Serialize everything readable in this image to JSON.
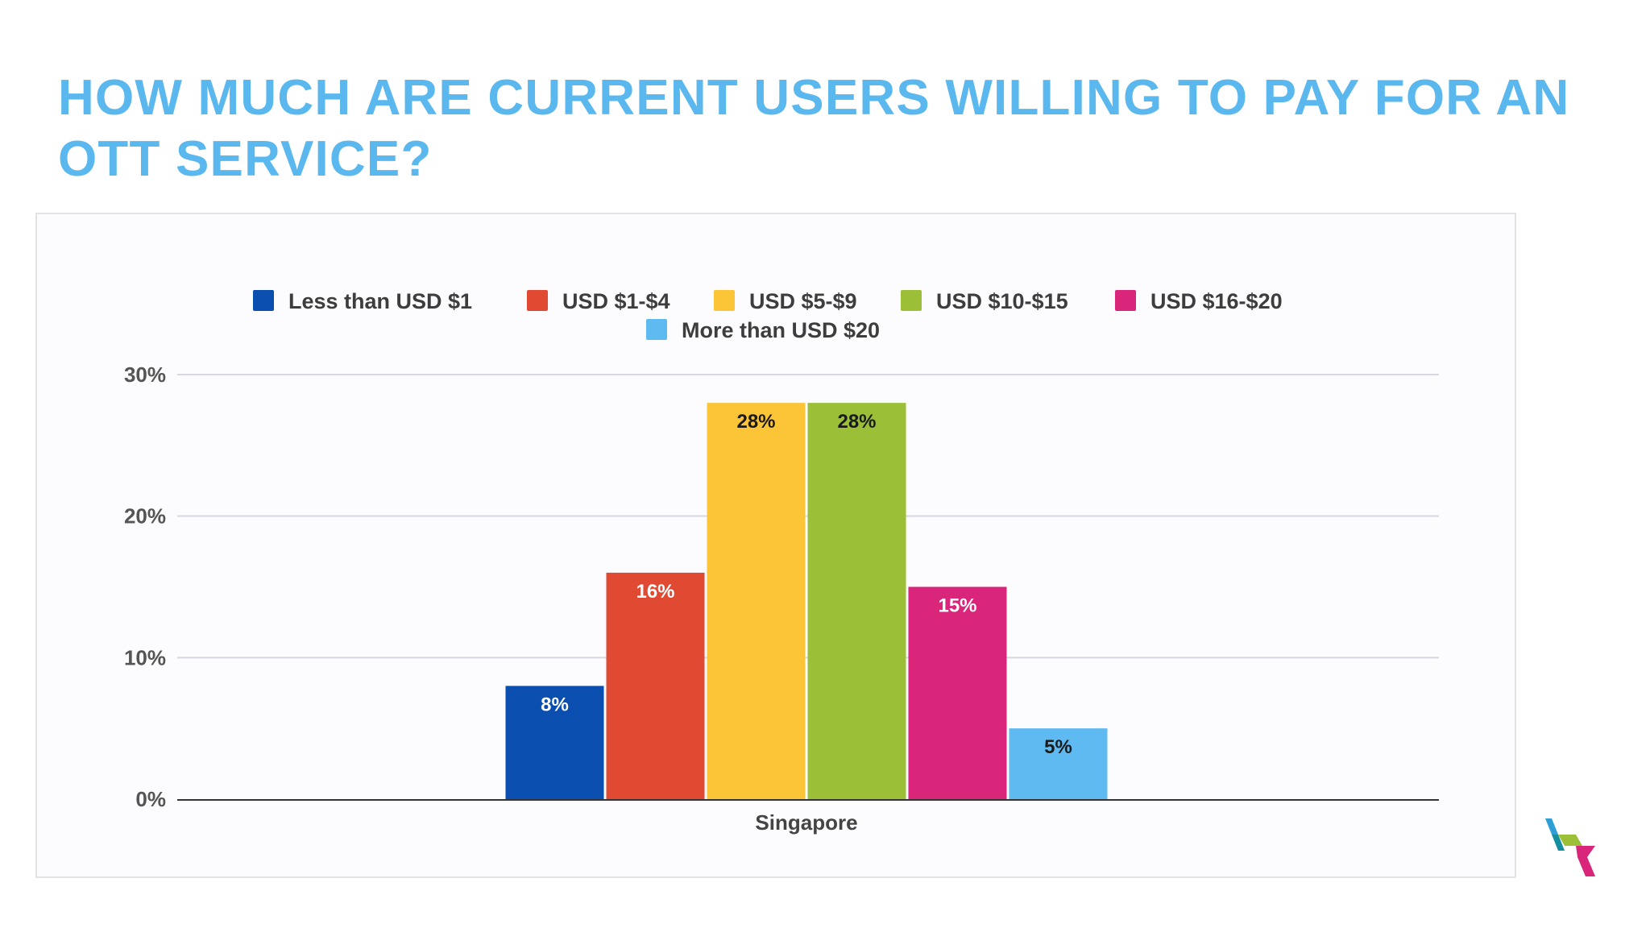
{
  "slide": {
    "title": "HOW MUCH ARE CURRENT USERS WILLING TO PAY FOR AN OTT SERVICE?"
  },
  "chart_data": {
    "type": "bar",
    "categories": [
      "Singapore"
    ],
    "series": [
      {
        "name": "Less than USD $1",
        "values": [
          8
        ],
        "label": "8%",
        "color": "#0a4eaf",
        "label_color": "#ffffff"
      },
      {
        "name": "USD $1-$4",
        "values": [
          16
        ],
        "label": "16%",
        "color": "#e04a33",
        "label_color": "#ffffff"
      },
      {
        "name": "USD $5-$9",
        "values": [
          28
        ],
        "label": "28%",
        "color": "#fbc537",
        "label_color": "#1a1a1a"
      },
      {
        "name": "USD $10-$15",
        "values": [
          28
        ],
        "label": "28%",
        "color": "#9bbf36",
        "label_color": "#1a1a1a"
      },
      {
        "name": "USD $16-$20",
        "values": [
          15
        ],
        "label": "15%",
        "color": "#d9257a",
        "label_color": "#ffffff"
      },
      {
        "name": "More than USD $20",
        "values": [
          5
        ],
        "label": "5%",
        "color": "#5fbaf2",
        "label_color": "#1a1a1a"
      }
    ],
    "yticks": [
      "0%",
      "10%",
      "20%",
      "30%"
    ],
    "ylim": [
      0,
      30
    ],
    "grid": true,
    "legend_position": "top",
    "xlabel": "",
    "ylabel": ""
  },
  "logo": {
    "colors": [
      "#2d9fd6",
      "#138e9e",
      "#9bbf36",
      "#d9257a"
    ]
  }
}
